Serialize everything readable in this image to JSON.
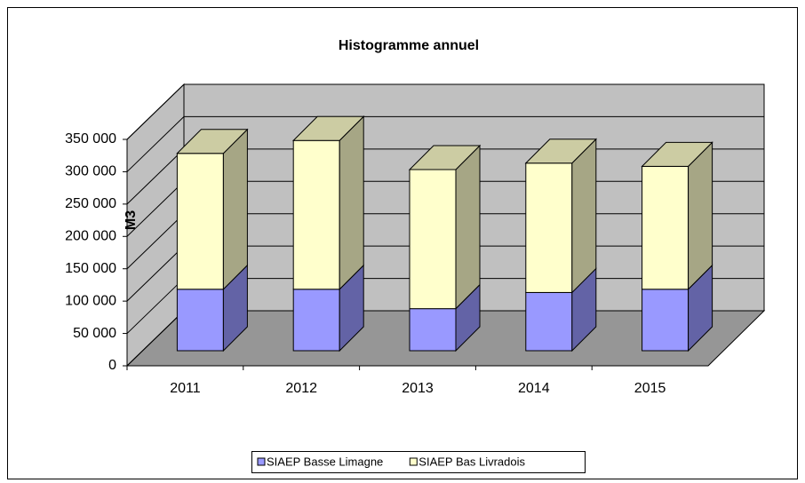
{
  "chart_data": {
    "type": "bar3d-stacked",
    "title": "Histogramme annuel",
    "y_label": "M3",
    "categories": [
      "2011",
      "2012",
      "2013",
      "2014",
      "2015"
    ],
    "series": [
      {
        "name": "SIAEP Basse Limagne",
        "color": "#9999ff",
        "values": [
          95000,
          95000,
          65000,
          90000,
          95000
        ]
      },
      {
        "name": "SIAEP Bas Livradois",
        "color": "#ffffcc",
        "values": [
          210000,
          230000,
          215000,
          200000,
          190000
        ]
      }
    ],
    "ylim": [
      0,
      350000
    ],
    "yticks": [
      0,
      {
        "value": 50000,
        "label": "50 000"
      },
      {
        "value": 100000,
        "label": "100 000"
      },
      {
        "value": 150000,
        "label": "150 000"
      },
      {
        "value": 200000,
        "label": "200 000"
      },
      {
        "value": 250000,
        "label": "250 000"
      },
      {
        "value": 300000,
        "label": "300 000"
      },
      {
        "value": 350000,
        "label": "350 000"
      }
    ],
    "grid": true,
    "legend": "bottom"
  }
}
